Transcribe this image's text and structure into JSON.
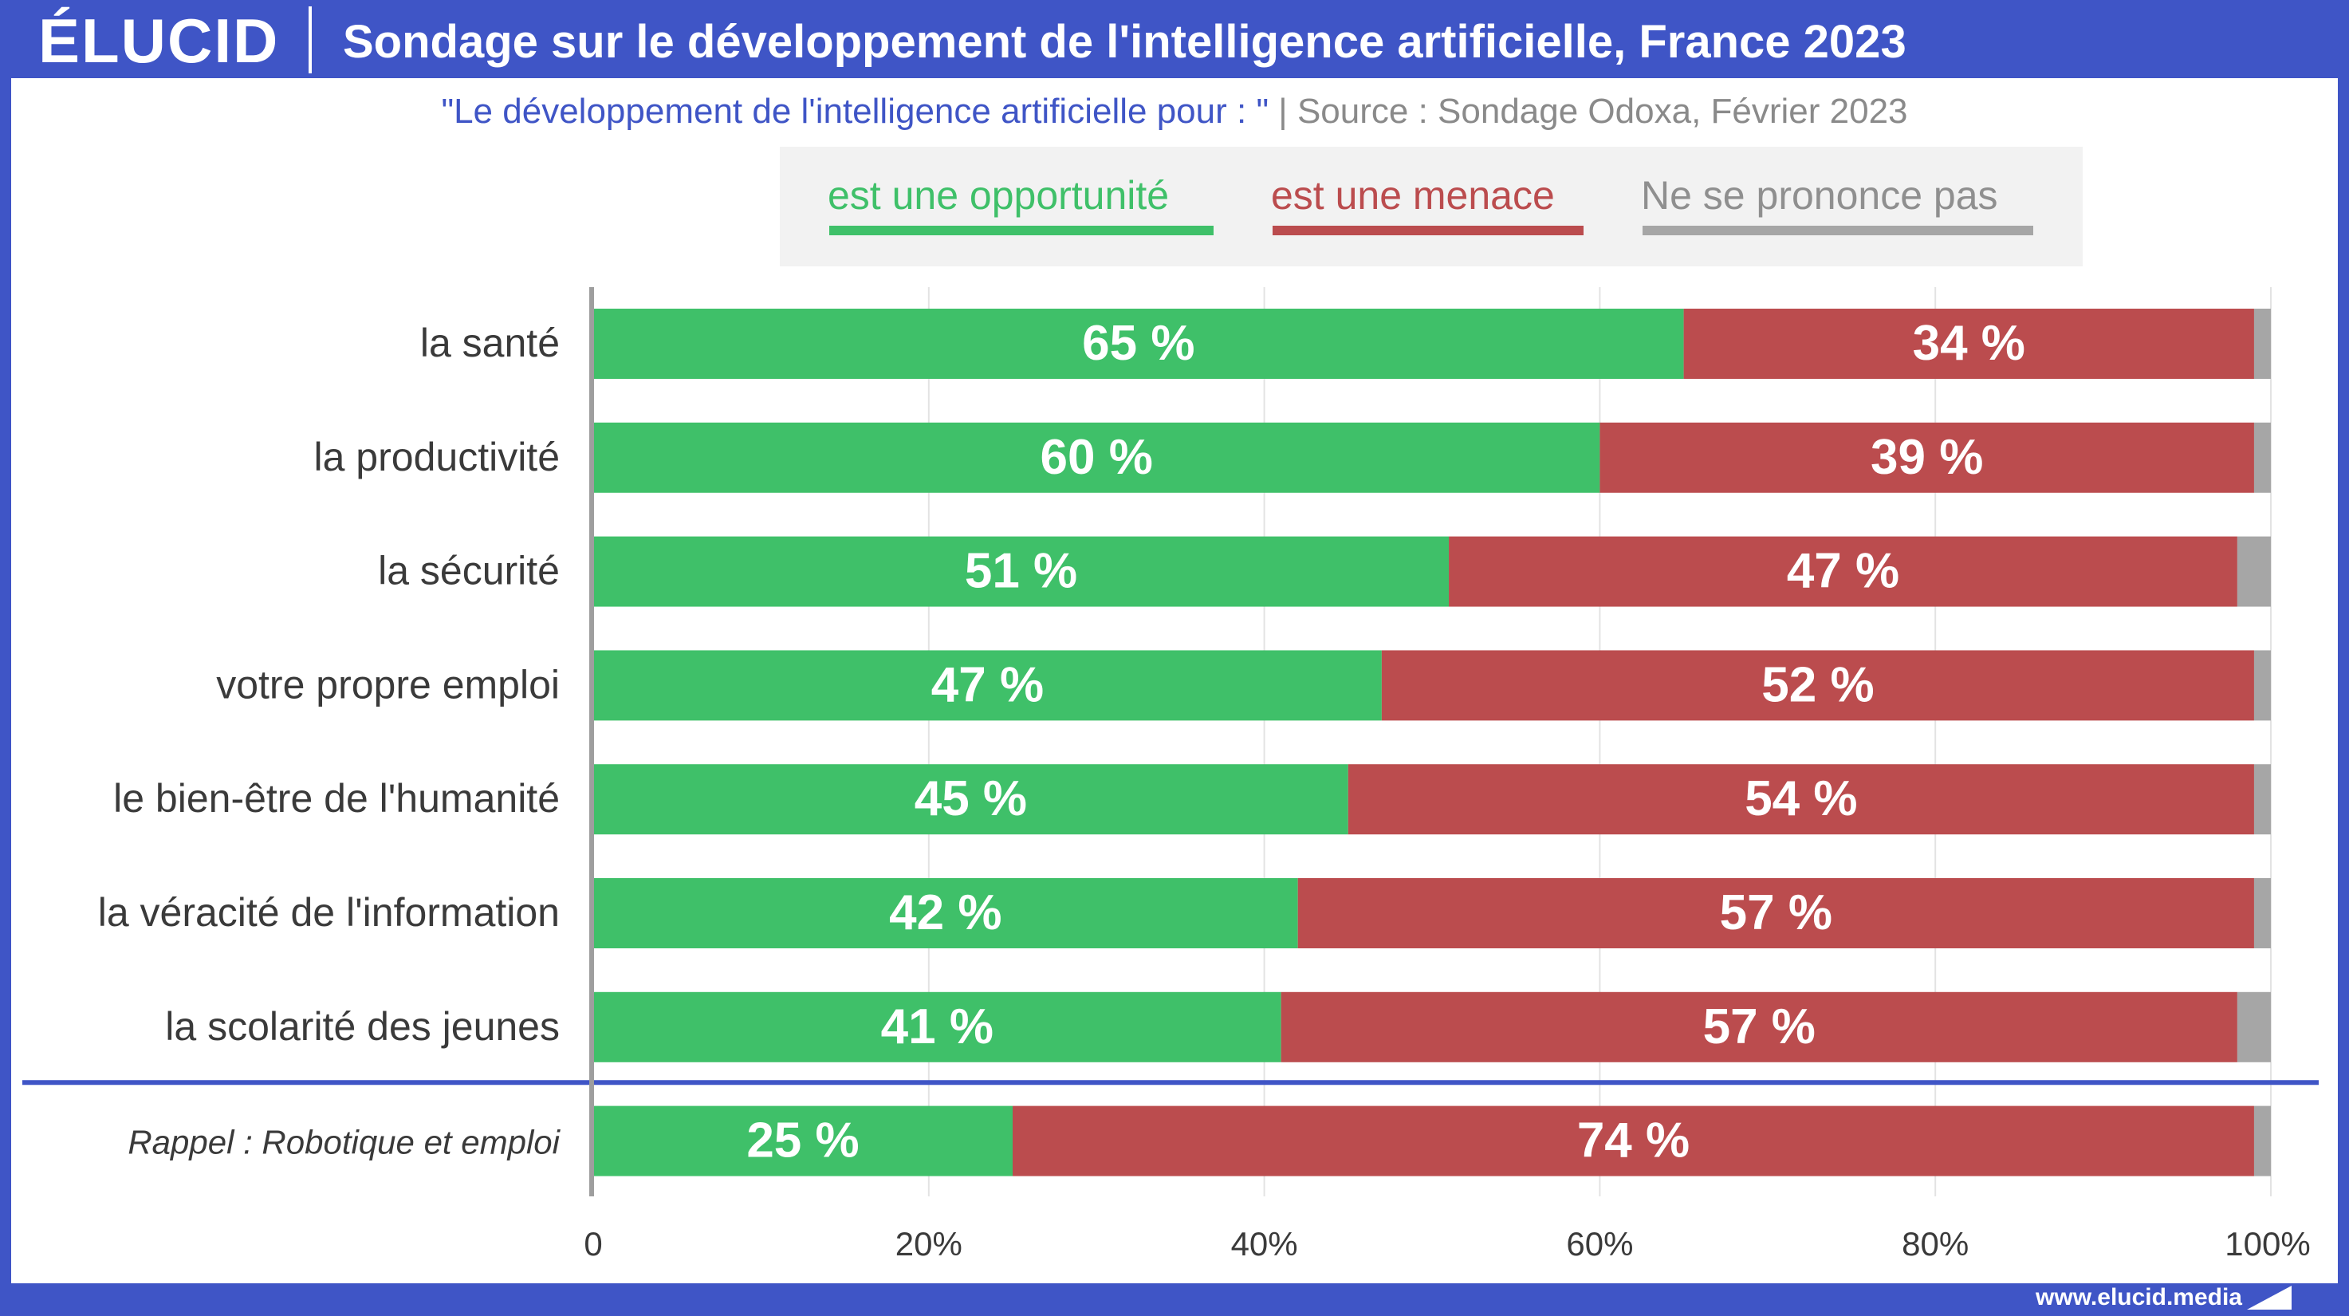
{
  "header": {
    "logo": "ÉLUCID",
    "title": "Sondage sur le développement de l'intelligence artificielle, France 2023",
    "subtitle_quote": "\"Le développement de l'intelligence artificielle pour : \"",
    "subtitle_sep": " | ",
    "subtitle_source": "Source : Sondage Odoxa, Février 2023"
  },
  "footer": {
    "url": "www.elucid.media"
  },
  "colors": {
    "brand": "#3f55c6",
    "opportunity": "#3fc069",
    "threat": "#bb4c4e",
    "no_answer": "#a6a6a6"
  },
  "chart_data": {
    "type": "bar",
    "orientation": "horizontal",
    "stacked": true,
    "xlim": [
      0,
      100
    ],
    "x_ticks": [
      "0",
      "20%",
      "40%",
      "60%",
      "80%",
      "100%"
    ],
    "grid": true,
    "legend_position": "top",
    "categories": [
      "la santé",
      "la productivité",
      "la sécurité",
      "votre propre emploi",
      "le bien-être de l'humanité",
      "la véracité de l'information",
      "la scolarité des jeunes",
      "Rappel : Robotique et emploi"
    ],
    "separator_after_index": 6,
    "series": [
      {
        "name": "est une opportunité",
        "values": [
          65,
          60,
          51,
          47,
          45,
          42,
          41,
          25
        ],
        "labels": [
          "65 %",
          "60 %",
          "51 %",
          "47 %",
          "45 %",
          "42 %",
          "41 %",
          "25 %"
        ]
      },
      {
        "name": "est une menace",
        "values": [
          34,
          39,
          47,
          52,
          54,
          57,
          57,
          74
        ],
        "labels": [
          "34 %",
          "39 %",
          "47 %",
          "52 %",
          "54 %",
          "57 %",
          "57 %",
          "74 %"
        ]
      },
      {
        "name": "Ne se prononce pas",
        "values": [
          1,
          1,
          2,
          1,
          1,
          1,
          2,
          1
        ]
      }
    ]
  }
}
